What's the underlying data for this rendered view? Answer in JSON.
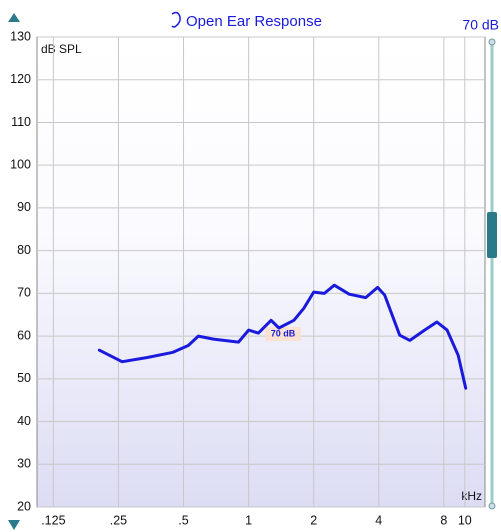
{
  "chart_data": {
    "type": "line",
    "title": "Open Ear Response",
    "y_label": "dB SPL",
    "x_label": "kHz",
    "level_label": "70 dB",
    "annotation": "70 dB",
    "xscale": "log",
    "grid": true,
    "color": "#1a1adc",
    "xlim": [
      0.105,
      12.4
    ],
    "ylim": [
      20,
      130
    ],
    "xticks": [
      {
        "value": 0.125,
        "label": ".125"
      },
      {
        "value": 0.25,
        "label": ".25"
      },
      {
        "value": 0.5,
        "label": ".5"
      },
      1,
      2,
      4,
      8,
      10
    ],
    "yticks": [
      20,
      30,
      40,
      50,
      60,
      70,
      80,
      90,
      100,
      110,
      120,
      130
    ],
    "x": [
      0.204,
      0.26,
      0.34,
      0.447,
      0.526,
      0.585,
      0.687,
      0.898,
      1.0,
      1.11,
      1.27,
      1.38,
      1.62,
      1.8,
      2.0,
      2.24,
      2.49,
      2.92,
      3.48,
      3.95,
      4.26,
      5.0,
      5.57,
      6.52,
      7.43,
      8.28,
      9.32,
      10.1
    ],
    "values": [
      56.7,
      54,
      55,
      56.2,
      57.8,
      60,
      59.3,
      58.6,
      61.4,
      60.7,
      63.7,
      61.9,
      63.7,
      66.5,
      70.3,
      70,
      71.9,
      69.8,
      69,
      71.4,
      69.6,
      60.2,
      59,
      61.4,
      63.3,
      61.4,
      55.5,
      47.8
    ]
  }
}
